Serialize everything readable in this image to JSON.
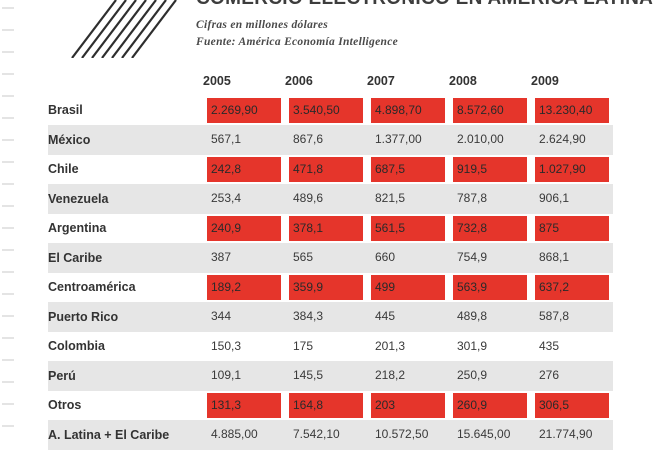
{
  "title": "COMERCIO ELECTRÓNICO EN AMÉRICA LATINA",
  "subtitle": "Cifras en millones dólares",
  "source": "Fuente: América Economía Intelligence",
  "colors": {
    "red": "#e5352b",
    "gray": "#e6e6e6",
    "highlight": "#1e4f86",
    "year_text": "#cf2f24"
  },
  "chart_data": {
    "type": "table",
    "columns": [
      "2005",
      "2006",
      "2007",
      "2008",
      "2009"
    ],
    "rows": [
      {
        "label": "Brasil",
        "style": "red",
        "values": [
          "2.269,90",
          "3.540,50",
          "4.898,70",
          "8.572,60",
          "13.230,40"
        ]
      },
      {
        "label": "México",
        "style": "gray",
        "values": [
          "567,1",
          "867,6",
          "1.377,00",
          "2.010,00",
          "2.624,90"
        ]
      },
      {
        "label": "Chile",
        "style": "red",
        "values": [
          "242,8",
          "471,8",
          "687,5",
          "919,5",
          "1.027,90"
        ]
      },
      {
        "label": "Venezuela",
        "style": "gray",
        "values": [
          "253,4",
          "489,6",
          "821,5",
          "787,8",
          "906,1"
        ]
      },
      {
        "label": "Argentina",
        "style": "red",
        "values": [
          "240,9",
          "378,1",
          "561,5",
          "732,8",
          "875"
        ]
      },
      {
        "label": "El Caribe",
        "style": "gray",
        "values": [
          "387",
          "565",
          "660",
          "754,9",
          "868,1"
        ]
      },
      {
        "label": "Centroamérica",
        "style": "red",
        "values": [
          "189,2",
          "359,9",
          "499",
          "563,9",
          "637,2"
        ]
      },
      {
        "label": "Puerto Rico",
        "style": "gray",
        "values": [
          "344",
          "384,3",
          "445",
          "489,8",
          "587,8"
        ]
      },
      {
        "label": "Colombia",
        "style": "highlight",
        "values": [
          "150,3",
          "175",
          "201,3",
          "301,9",
          "435"
        ]
      },
      {
        "label": "Perú",
        "style": "gray",
        "values": [
          "109,1",
          "145,5",
          "218,2",
          "250,9",
          "276"
        ]
      },
      {
        "label": "Otros",
        "style": "red",
        "values": [
          "131,3",
          "164,8",
          "203",
          "260,9",
          "306,5"
        ]
      },
      {
        "label": "A. Latina + El Caribe",
        "style": "gray",
        "values": [
          "4.885,00",
          "7.542,10",
          "10.572,50",
          "15.645,00",
          "21.774,90"
        ]
      }
    ]
  }
}
